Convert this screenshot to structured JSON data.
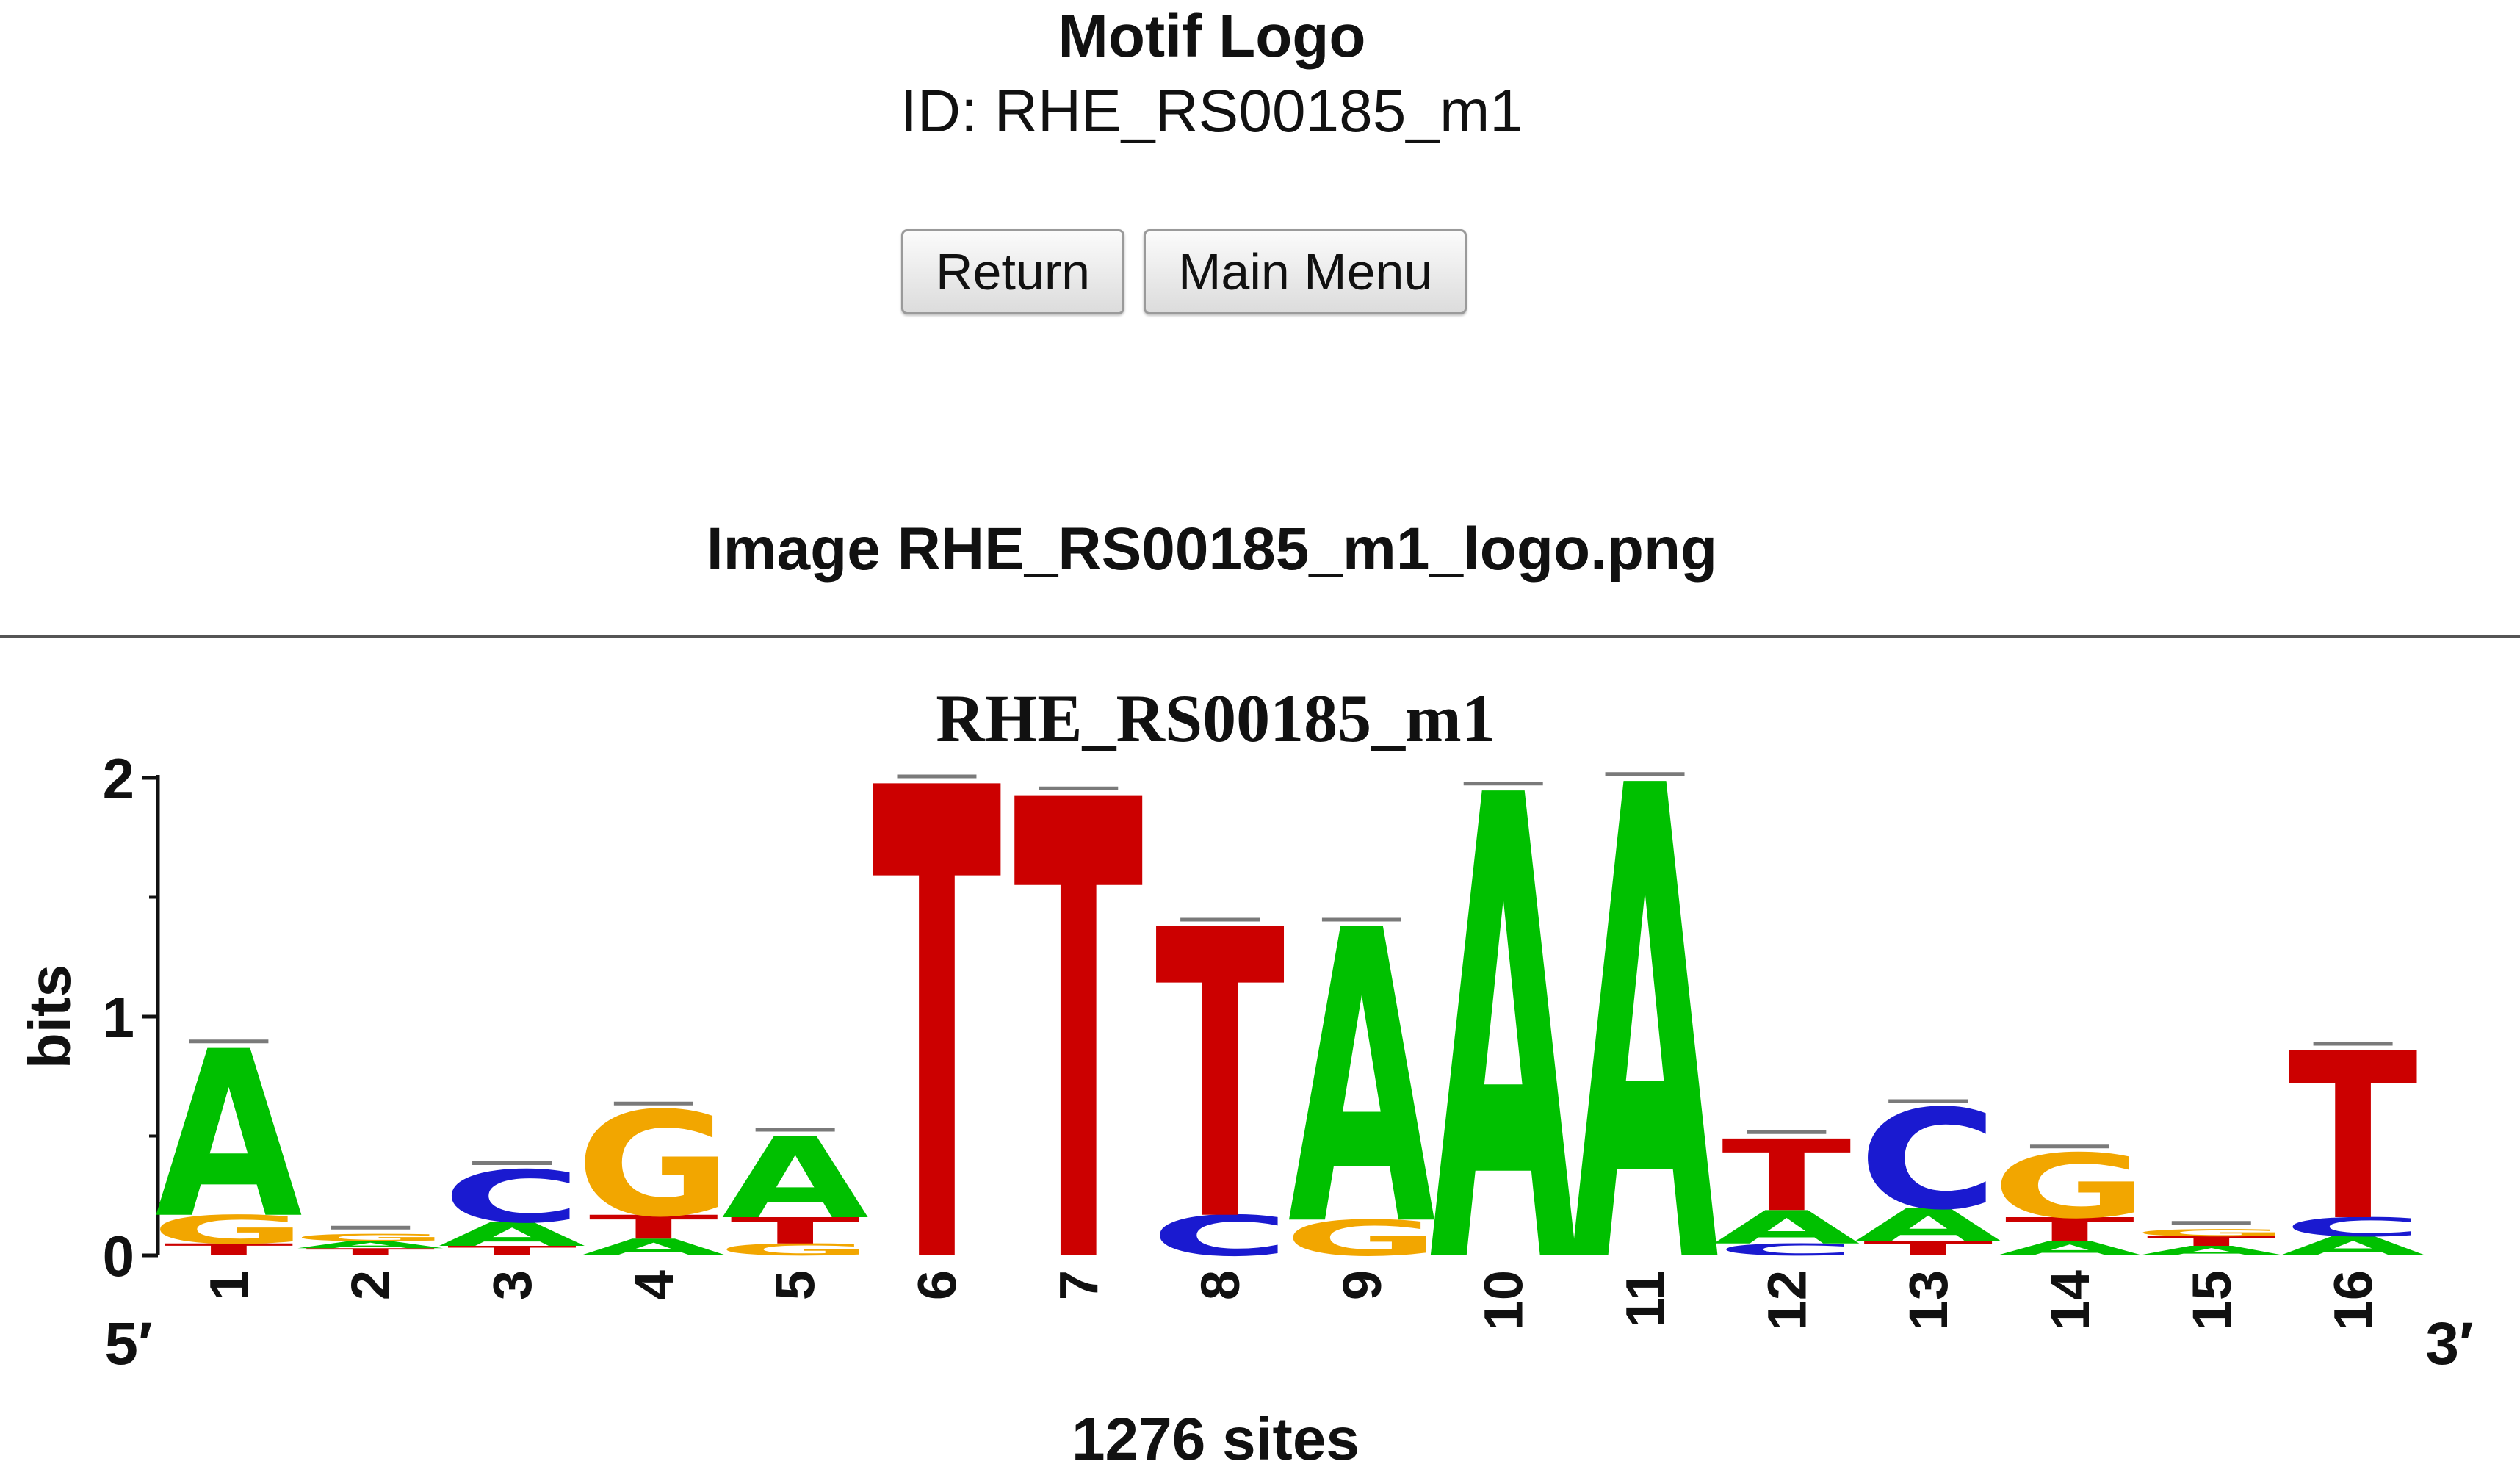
{
  "header": {
    "title": "Motif Logo",
    "subtitle": "ID: RHE_RS00185_m1"
  },
  "buttons": {
    "return_label": "Return",
    "main_menu_label": "Main Menu"
  },
  "image_caption": "Image RHE_RS00185_m1_logo.png",
  "colors": {
    "A": "#00c000",
    "C": "#1a1ad0",
    "G": "#f2a600",
    "T": "#cc0000"
  },
  "chart_data": {
    "type": "sequence-logo",
    "title": "RHE_RS00185_m1",
    "ylabel": "bits",
    "xlabel": "1276 sites",
    "ylim": [
      0,
      2
    ],
    "y_ticks": [
      "0",
      "1",
      "2"
    ],
    "end_labels": {
      "left": "5′",
      "right": "3′"
    },
    "positions": [
      {
        "label": "1",
        "stack": [
          [
            "T",
            0.05
          ],
          [
            "G",
            0.12
          ],
          [
            "A",
            0.7
          ]
        ]
      },
      {
        "label": "2",
        "stack": [
          [
            "T",
            0.03
          ],
          [
            "A",
            0.03
          ],
          [
            "G",
            0.03
          ]
        ]
      },
      {
        "label": "3",
        "stack": [
          [
            "T",
            0.04
          ],
          [
            "A",
            0.1
          ],
          [
            "C",
            0.22
          ]
        ]
      },
      {
        "label": "4",
        "stack": [
          [
            "A",
            0.07
          ],
          [
            "T",
            0.1
          ],
          [
            "G",
            0.44
          ]
        ]
      },
      {
        "label": "5",
        "stack": [
          [
            "G",
            0.05
          ],
          [
            "T",
            0.11
          ],
          [
            "A",
            0.34
          ]
        ]
      },
      {
        "label": "6",
        "stack": [
          [
            "T",
            1.98
          ]
        ]
      },
      {
        "label": "7",
        "stack": [
          [
            "T",
            1.93
          ]
        ]
      },
      {
        "label": "8",
        "stack": [
          [
            "C",
            0.17
          ],
          [
            "T",
            1.21
          ]
        ]
      },
      {
        "label": "9",
        "stack": [
          [
            "G",
            0.15
          ],
          [
            "A",
            1.23
          ]
        ]
      },
      {
        "label": "10",
        "stack": [
          [
            "A",
            1.95
          ]
        ]
      },
      {
        "label": "11",
        "stack": [
          [
            "A",
            1.99
          ]
        ]
      },
      {
        "label": "12",
        "stack": [
          [
            "C",
            0.05
          ],
          [
            "A",
            0.14
          ],
          [
            "T",
            0.3
          ]
        ]
      },
      {
        "label": "13",
        "stack": [
          [
            "T",
            0.06
          ],
          [
            "A",
            0.14
          ],
          [
            "C",
            0.42
          ]
        ]
      },
      {
        "label": "14",
        "stack": [
          [
            "A",
            0.06
          ],
          [
            "T",
            0.1
          ],
          [
            "G",
            0.27
          ]
        ]
      },
      {
        "label": "15",
        "stack": [
          [
            "A",
            0.04
          ],
          [
            "T",
            0.04
          ],
          [
            "G",
            0.03
          ]
        ]
      },
      {
        "label": "16",
        "stack": [
          [
            "A",
            0.08
          ],
          [
            "C",
            0.08
          ],
          [
            "T",
            0.7
          ]
        ]
      }
    ]
  }
}
